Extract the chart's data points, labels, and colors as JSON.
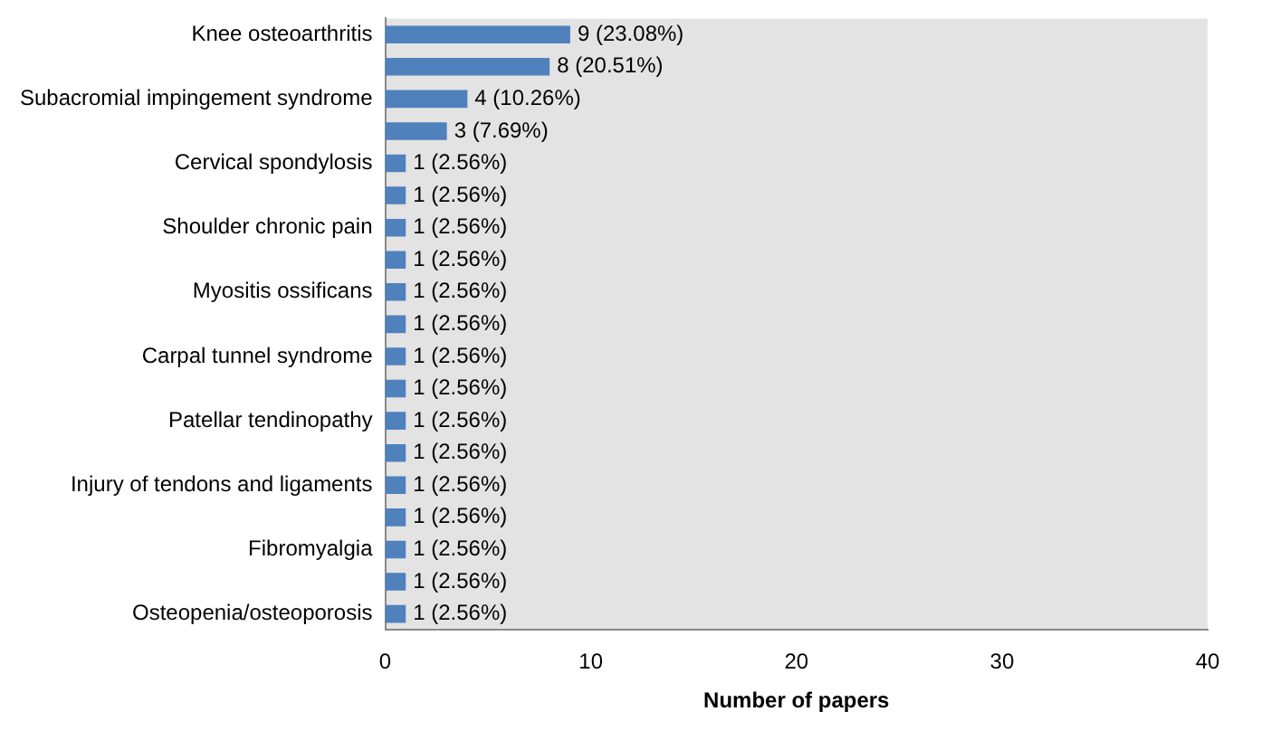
{
  "chart_data": {
    "type": "bar",
    "orientation": "horizontal",
    "xlabel": "Number of papers",
    "categories": [
      "Knee osteoarthritis",
      null,
      "Subacromial impingement syndrome",
      null,
      "Cervical spondylosis",
      null,
      "Shoulder chronic pain",
      null,
      "Myositis ossificans",
      null,
      "Carpal tunnel syndrome",
      null,
      "Patellar tendinopathy",
      null,
      "Injury of tendons and ligaments",
      null,
      "Fibromyalgia",
      null,
      "Osteopenia/osteoporosis"
    ],
    "values": [
      9,
      8,
      4,
      3,
      1,
      1,
      1,
      1,
      1,
      1,
      1,
      1,
      1,
      1,
      1,
      1,
      1,
      1,
      1
    ],
    "value_labels": [
      "9 (23.08%)",
      "8 (20.51%)",
      "4 (10.26%)",
      "3 (7.69%)",
      "1 (2.56%)",
      "1 (2.56%)",
      "1 (2.56%)",
      "1 (2.56%)",
      "1 (2.56%)",
      "1 (2.56%)",
      "1 (2.56%)",
      "1 (2.56%)",
      "1 (2.56%)",
      "1 (2.56%)",
      "1 (2.56%)",
      "1 (2.56%)",
      "1 (2.56%)",
      "1 (2.56%)",
      "1 (2.56%)"
    ],
    "color": "#4f81bd",
    "xlim": [
      0,
      40
    ],
    "xticks": [
      0,
      10,
      20,
      30,
      40
    ],
    "grid": false,
    "legend": false
  }
}
